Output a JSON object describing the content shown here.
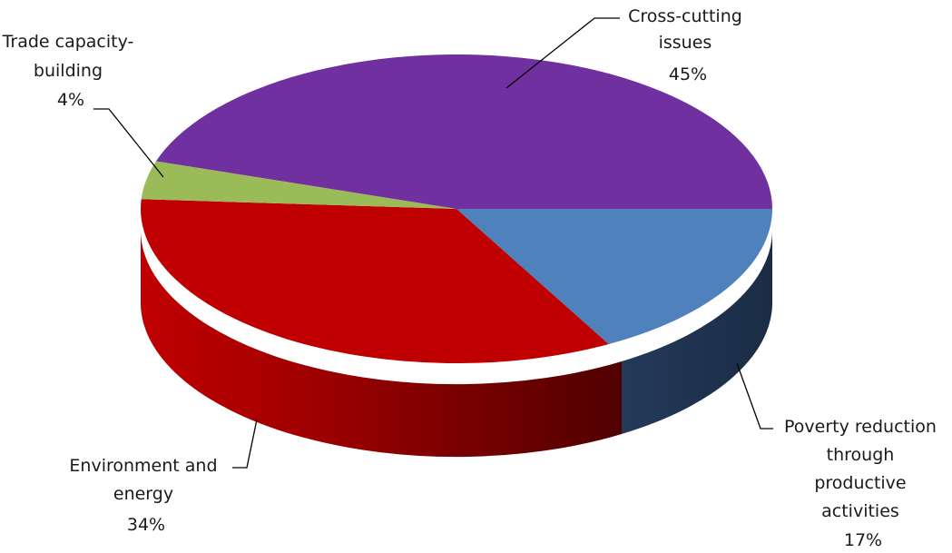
{
  "chart_data": {
    "type": "pie",
    "three_d": true,
    "title": "",
    "slices": [
      {
        "label": "Poverty reduction through productive activities",
        "label_lines": [
          "Poverty reduction",
          "through",
          "productive",
          "activities"
        ],
        "value": 17,
        "value_label": "17%",
        "color": "#4f81bd",
        "side_color": "#1f334f"
      },
      {
        "label": "Environment and energy",
        "label_lines": [
          "Environment and",
          "energy"
        ],
        "value": 34,
        "value_label": "34%",
        "color": "#c00000",
        "side_color": "#6e0000"
      },
      {
        "label": "Trade capacity-building",
        "label_lines": [
          "Trade capacity-",
          "building"
        ],
        "value": 4,
        "value_label": "4%",
        "color": "#9bbb59",
        "side_color": "#5f7a2c"
      },
      {
        "label": "Cross-cutting issues",
        "label_lines": [
          "Cross-cutting",
          "issues"
        ],
        "value": 45,
        "value_label": "45%",
        "color": "#7030a0",
        "side_color": "#3f1a5c"
      }
    ]
  }
}
